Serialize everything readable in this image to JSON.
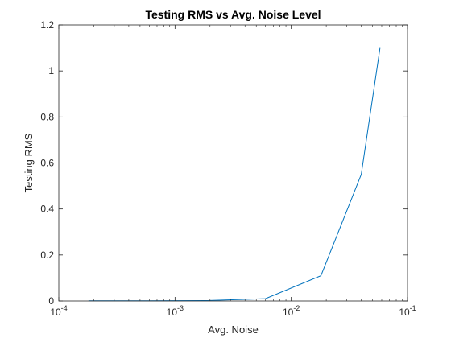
{
  "chart_data": {
    "type": "line",
    "title": "Testing RMS vs Avg. Noise Level",
    "xlabel": "Avg. Noise",
    "ylabel": "Testing RMS",
    "xscale": "log",
    "xlim": [
      0.0001,
      0.1
    ],
    "ylim": [
      0,
      1.2
    ],
    "x_ticks": [
      {
        "value": 0.0001,
        "base": "10",
        "exp": "-4"
      },
      {
        "value": 0.001,
        "base": "10",
        "exp": "-3"
      },
      {
        "value": 0.01,
        "base": "10",
        "exp": "-2"
      },
      {
        "value": 0.1,
        "base": "10",
        "exp": "-1"
      }
    ],
    "y_ticks": [
      {
        "value": 0,
        "label": "0"
      },
      {
        "value": 0.2,
        "label": "0.2"
      },
      {
        "value": 0.4,
        "label": "0.4"
      },
      {
        "value": 0.6,
        "label": "0.6"
      },
      {
        "value": 0.8,
        "label": "0.8"
      },
      {
        "value": 1.0,
        "label": "1"
      },
      {
        "value": 1.2,
        "label": "1.2"
      }
    ],
    "grid": false,
    "series": [
      {
        "color": "#0072BD",
        "x": [
          0.00018,
          0.0006,
          0.002,
          0.006,
          0.018,
          0.04,
          0.058
        ],
        "y": [
          0.001,
          0.001,
          0.002,
          0.01,
          0.11,
          0.55,
          1.1
        ]
      }
    ]
  }
}
